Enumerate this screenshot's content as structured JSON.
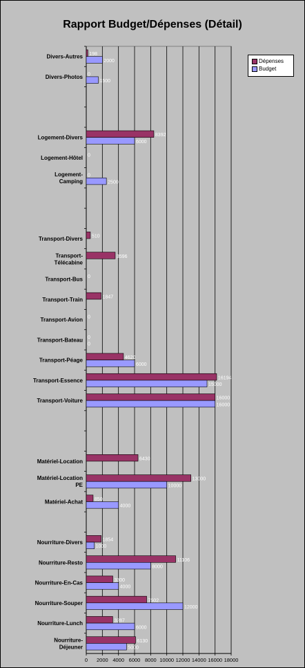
{
  "chart_data": {
    "type": "bar",
    "orientation": "horizontal",
    "title": "Rapport Budget/Dépenses (Détail)",
    "xlim": [
      0,
      18000
    ],
    "x_ticks": [
      "0",
      "2000",
      "4000",
      "6000",
      "8000",
      "10000",
      "12000",
      "14000",
      "16000",
      "18000"
    ],
    "grid": true,
    "legend_position": "top-right",
    "colors": {
      "depenses": "#993366",
      "budget": "#9999ff",
      "plot_bg": "#c0c0c0",
      "frame_bg": "#c0c0c0"
    },
    "series": [
      {
        "key": "depenses",
        "name": "Dépenses"
      },
      {
        "key": "budget",
        "name": "Budget"
      }
    ],
    "categories": [
      {
        "lines": [
          "Divers-Autres"
        ],
        "depenses": 198,
        "budget": 2000,
        "depenses_label": "198",
        "budget_label": "2000"
      },
      {
        "lines": [
          "Divers-Photos"
        ],
        "depenses": 0,
        "budget": 1500,
        "depenses_label": "0",
        "budget_label": "1500"
      },
      {
        "lines": [],
        "depenses": null,
        "budget": null
      },
      {
        "lines": [],
        "depenses": null,
        "budget": null
      },
      {
        "lines": [
          "Logement-Divers"
        ],
        "depenses": 8392,
        "budget": 6000,
        "depenses_label": "8392",
        "budget_label": "6000"
      },
      {
        "lines": [
          "Logement-Hôtel"
        ],
        "depenses": 0,
        "budget": null,
        "depenses_label": "0"
      },
      {
        "lines": [
          "Logement-",
          "Camping"
        ],
        "depenses": 0,
        "budget": 2500,
        "depenses_label": "0",
        "budget_label": "2500"
      },
      {
        "lines": [],
        "depenses": null,
        "budget": null
      },
      {
        "lines": [],
        "depenses": null,
        "budget": null
      },
      {
        "lines": [
          "Transport-Divers"
        ],
        "depenses": 510,
        "budget": null,
        "depenses_label": "510"
      },
      {
        "lines": [
          "Transport-",
          "Télécabine"
        ],
        "depenses": 3596,
        "budget": null,
        "depenses_label": "3596"
      },
      {
        "lines": [
          "Transport-Bus"
        ],
        "depenses": 0,
        "budget": null,
        "depenses_label": "0"
      },
      {
        "lines": [
          "Transport-Train"
        ],
        "depenses": 1847,
        "budget": null,
        "depenses_label": "1847"
      },
      {
        "lines": [
          "Transport-Avion"
        ],
        "depenses": 0,
        "budget": null,
        "depenses_label": "0"
      },
      {
        "lines": [
          "Transport-Bateau"
        ],
        "depenses": 0,
        "budget": 0,
        "depenses_label": "0",
        "budget_label": "0"
      },
      {
        "lines": [
          "Transport-Péage"
        ],
        "depenses": 4620,
        "budget": 6000,
        "depenses_label": "4620",
        "budget_label": "6000"
      },
      {
        "lines": [
          "Transport-Essence"
        ],
        "depenses": 16194,
        "budget": 15000,
        "depenses_label": "16194",
        "budget_label": "15000"
      },
      {
        "lines": [
          "Transport-Voiture"
        ],
        "depenses": 16000,
        "budget": 16000,
        "depenses_label": "16000",
        "budget_label": "16000"
      },
      {
        "lines": [],
        "depenses": null,
        "budget": null
      },
      {
        "lines": [],
        "depenses": null,
        "budget": null
      },
      {
        "lines": [
          "Matériel-Location"
        ],
        "depenses": 6430,
        "budget": null,
        "depenses_label": "6430"
      },
      {
        "lines": [
          "Matériel-Location",
          "PE"
        ],
        "depenses": 13000,
        "budget": 10000,
        "depenses_label": "13000",
        "budget_label": "10000"
      },
      {
        "lines": [
          "Matériel-Achat"
        ],
        "depenses": 850,
        "budget": 4000,
        "depenses_label": "850",
        "budget_label": "4000"
      },
      {
        "lines": [],
        "depenses": null,
        "budget": null
      },
      {
        "lines": [
          "Nourriture-Divers"
        ],
        "depenses": 1854,
        "budget": 1000,
        "depenses_label": "1854",
        "budget_label": "1000"
      },
      {
        "lines": [
          "Nourriture-Resto"
        ],
        "depenses": 11106,
        "budget": 8000,
        "depenses_label": "11106",
        "budget_label": "8000"
      },
      {
        "lines": [
          "Nourriture-En-Cas"
        ],
        "depenses": 3300,
        "budget": 4000,
        "depenses_label": "3300",
        "budget_label": "4000"
      },
      {
        "lines": [
          "Nourriture-Souper"
        ],
        "depenses": 7502,
        "budget": 12000,
        "depenses_label": "7502",
        "budget_label": "12000"
      },
      {
        "lines": [
          "Nourriture-Lunch"
        ],
        "depenses": 3287,
        "budget": 6000,
        "depenses_label": "3287",
        "budget_label": "6000"
      },
      {
        "lines": [
          "Nourriture-",
          "Déjeuner"
        ],
        "depenses": 6130,
        "budget": 5000,
        "depenses_label": "6130",
        "budget_label": "5000"
      }
    ]
  }
}
